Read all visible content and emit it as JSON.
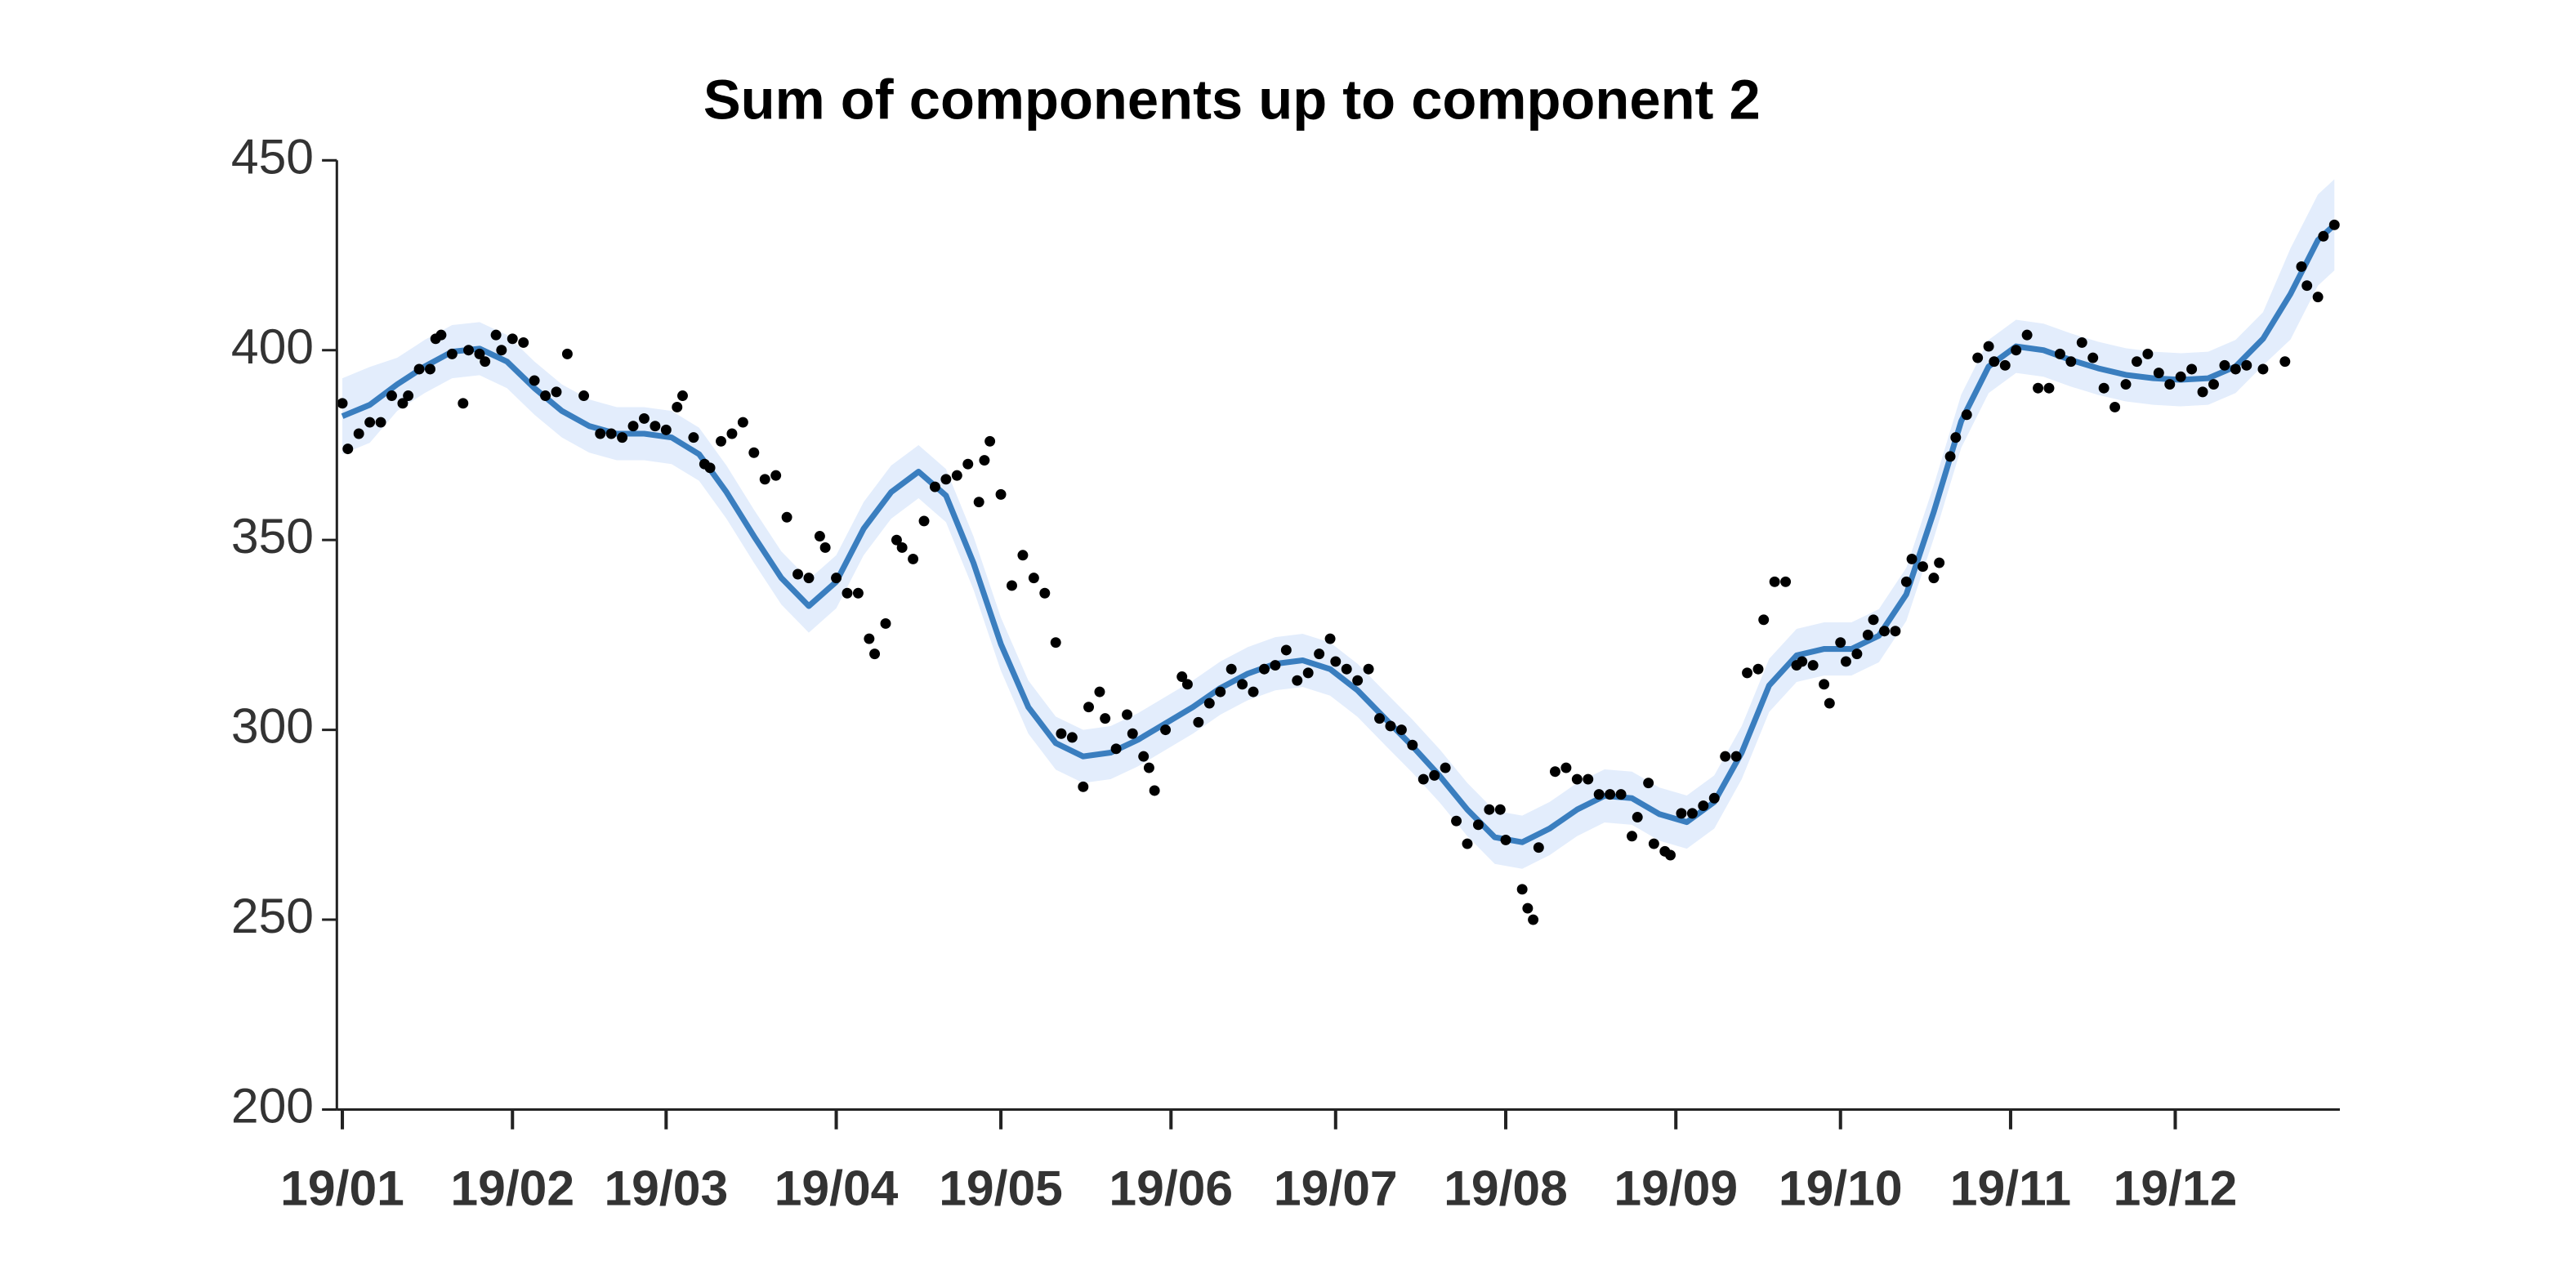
{
  "chart_data": {
    "type": "line",
    "title": "Sum of components up to component 2",
    "xlim": [
      -1,
      364
    ],
    "ylim": [
      200,
      450
    ],
    "yticks": [
      200,
      250,
      300,
      350,
      400,
      450
    ],
    "xticks": [
      {
        "value": 0,
        "label": "19/01"
      },
      {
        "value": 31,
        "label": "19/02"
      },
      {
        "value": 59,
        "label": "19/03"
      },
      {
        "value": 90,
        "label": "19/04"
      },
      {
        "value": 120,
        "label": "19/05"
      },
      {
        "value": 151,
        "label": "19/06"
      },
      {
        "value": 181,
        "label": "19/07"
      },
      {
        "value": 212,
        "label": "19/08"
      },
      {
        "value": 243,
        "label": "19/09"
      },
      {
        "value": 273,
        "label": "19/10"
      },
      {
        "value": 304,
        "label": "19/11"
      },
      {
        "value": 334,
        "label": "19/12"
      }
    ],
    "line": {
      "color": "#3a7ebf",
      "x": [
        0,
        5,
        10,
        15,
        20,
        25,
        30,
        35,
        40,
        45,
        50,
        55,
        60,
        65,
        70,
        75,
        80,
        85,
        90,
        95,
        100,
        105,
        110,
        115,
        120,
        125,
        130,
        135,
        140,
        145,
        150,
        155,
        160,
        165,
        170,
        175,
        180,
        185,
        190,
        195,
        200,
        205,
        210,
        215,
        220,
        225,
        230,
        235,
        240,
        245,
        250,
        255,
        260,
        265,
        270,
        275,
        280,
        285,
        290,
        295,
        300,
        305,
        310,
        315,
        320,
        325,
        330,
        335,
        340,
        345,
        350,
        355,
        360,
        363
      ],
      "values": [
        382.6,
        385.6,
        391,
        395.7,
        399.6,
        400.4,
        397,
        390,
        384,
        380,
        378,
        378,
        377,
        372.6,
        362.6,
        351,
        340,
        332.6,
        339,
        353,
        362.6,
        368,
        361.7,
        344,
        322.6,
        306,
        296.5,
        293,
        294,
        297.4,
        301.7,
        306,
        311,
        314.8,
        317.4,
        318.3,
        316,
        310.4,
        303,
        295.7,
        287.8,
        279,
        271.7,
        270.4,
        274,
        279,
        282.6,
        282,
        277.8,
        275.7,
        281,
        294,
        311.7,
        319.6,
        321.3,
        321.3,
        324.8,
        335.7,
        357.4,
        381.3,
        395.7,
        401,
        400,
        397.4,
        395.2,
        393.5,
        392.6,
        392.2,
        392.6,
        395.7,
        403,
        414.8,
        429,
        433
      ]
    },
    "band": {
      "color": "#e3edfc",
      "lower": [
        372.6,
        375.6,
        384,
        388.7,
        392.6,
        393.4,
        390,
        383,
        377,
        373,
        371,
        371,
        370,
        365.6,
        355.6,
        344,
        333,
        325.6,
        332,
        346,
        355.6,
        361,
        354.7,
        337,
        315.6,
        299,
        289.5,
        286,
        287,
        290.4,
        294.7,
        299,
        304,
        307.8,
        310.4,
        311.3,
        309,
        303.4,
        296,
        288.7,
        280.8,
        272,
        264.7,
        263.4,
        267,
        272,
        275.6,
        275,
        270.8,
        268.7,
        274,
        287,
        304.7,
        312.6,
        314.3,
        314.3,
        317.8,
        328.7,
        350.4,
        374.3,
        388.7,
        394,
        393,
        390.4,
        388.2,
        386.5,
        385.6,
        385.2,
        385.6,
        388.7,
        396,
        402.8,
        417,
        421
      ],
      "upper": [
        392.6,
        395.6,
        398,
        402.7,
        406.6,
        407.4,
        404,
        397,
        391,
        387,
        385,
        385,
        384,
        379.6,
        369.6,
        358,
        347,
        339.6,
        346,
        360,
        369.6,
        375,
        368.7,
        351,
        329.6,
        313,
        303.5,
        300,
        301,
        304.4,
        308.7,
        313,
        318,
        321.8,
        324.4,
        325.3,
        323,
        317.4,
        310,
        302.7,
        294.8,
        286,
        278.7,
        277.4,
        281,
        286,
        289.6,
        289,
        284.8,
        282.7,
        288,
        301,
        318.7,
        326.6,
        328.3,
        328.3,
        331.8,
        342.7,
        364.4,
        388.3,
        402.7,
        408,
        407,
        404.4,
        402.2,
        400.5,
        399.6,
        399.2,
        399.6,
        402.7,
        410,
        426.8,
        441,
        445
      ]
    },
    "scatter": {
      "color": "#000000",
      "x": [
        0,
        1,
        3,
        5,
        7,
        9,
        11,
        12,
        14,
        16,
        17,
        18,
        20,
        22,
        23,
        25,
        26,
        28,
        29,
        31,
        33,
        35,
        37,
        39,
        41,
        44,
        47,
        49,
        51,
        53,
        55,
        57,
        59,
        61,
        62,
        64,
        66,
        67,
        69,
        71,
        73,
        75,
        77,
        79,
        81,
        83,
        85,
        87,
        88,
        90,
        92,
        94,
        96,
        97,
        99,
        101,
        102,
        104,
        106,
        108,
        110,
        112,
        114,
        116,
        117,
        118,
        120,
        122,
        124,
        126,
        128,
        130,
        131,
        133,
        135,
        136,
        138,
        139,
        141,
        143,
        144,
        146,
        147,
        148,
        150,
        153,
        154,
        156,
        158,
        160,
        162,
        164,
        166,
        168,
        170,
        172,
        174,
        176,
        178,
        180,
        181,
        183,
        185,
        187,
        189,
        191,
        193,
        195,
        197,
        199,
        201,
        203,
        205,
        207,
        209,
        211,
        212,
        215,
        216,
        217,
        218,
        221,
        223,
        225,
        227,
        229,
        231,
        233,
        235,
        236,
        238,
        239,
        241,
        242,
        244,
        246,
        248,
        250,
        252,
        254,
        256,
        258,
        259,
        261,
        263,
        265,
        266,
        268,
        270,
        271,
        273,
        274,
        276,
        278,
        279,
        281,
        283,
        285,
        286,
        288,
        290,
        291,
        293,
        294,
        296,
        298,
        300,
        301,
        303,
        305,
        307,
        309,
        311,
        313,
        315,
        317,
        319,
        321,
        323,
        325,
        327,
        329,
        331,
        333,
        335,
        337,
        339,
        341,
        343,
        345,
        347,
        350,
        354,
        357,
        358,
        360,
        361,
        363
      ],
      "values": [
        386,
        374,
        378,
        381,
        381,
        388,
        386,
        388,
        395,
        395,
        403,
        404,
        399,
        386,
        400,
        399,
        397,
        404,
        400,
        403,
        402,
        392,
        388,
        389,
        399,
        388,
        378,
        378,
        377,
        380,
        382,
        380,
        379,
        385,
        388,
        377,
        370,
        369,
        376,
        378,
        381,
        373,
        366,
        367,
        356,
        341,
        340,
        351,
        348,
        340,
        336,
        336,
        324,
        320,
        328,
        350,
        348,
        345,
        355,
        364,
        366,
        367,
        370,
        360,
        371,
        376,
        362,
        338,
        346,
        340,
        336,
        323,
        299,
        298,
        285,
        306,
        310,
        303,
        295,
        304,
        299,
        293,
        290,
        284,
        300,
        314,
        312,
        302,
        307,
        310,
        316,
        312,
        310,
        316,
        317,
        321,
        313,
        315,
        320,
        324,
        318,
        316,
        313,
        316,
        303,
        301,
        300,
        296,
        287,
        288,
        290,
        276,
        270,
        275,
        279,
        279,
        271,
        258,
        253,
        250,
        269,
        289,
        290,
        287,
        287,
        283,
        283,
        283,
        272,
        277,
        286,
        270,
        268,
        267,
        278,
        278,
        280,
        282,
        293,
        293,
        315,
        316,
        329,
        339,
        339,
        317,
        318,
        317,
        312,
        307,
        323,
        318,
        320,
        325,
        329,
        326,
        326,
        339,
        345,
        343,
        340,
        344,
        372,
        377,
        383,
        398,
        401,
        397,
        396,
        400,
        404,
        390,
        390,
        399,
        397,
        402,
        398,
        390,
        385,
        391,
        397,
        399,
        394,
        391,
        393,
        395,
        389,
        391,
        396,
        395,
        396,
        395,
        397,
        422,
        417,
        414,
        430,
        433
      ]
    }
  }
}
